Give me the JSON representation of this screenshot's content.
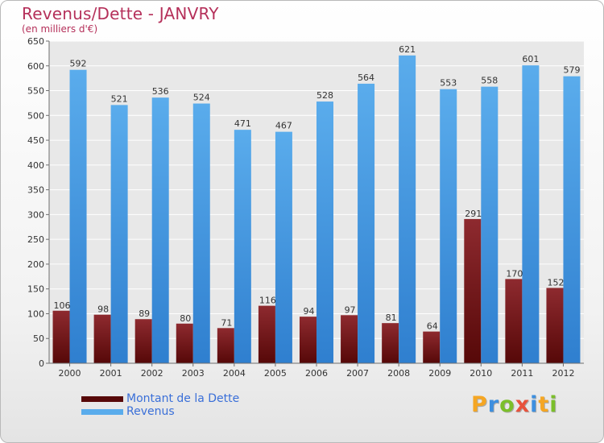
{
  "title": "Revenus/Dette - JANVRY",
  "subtitle": "(en milliers d'€)",
  "legend": {
    "placement": "bottom-left",
    "debt_label": "Montant de la Dette",
    "revenue_label": "Revenus"
  },
  "logo": {
    "text": "Proxiti",
    "letters": [
      "P",
      "r",
      "o",
      "x",
      "i",
      "t",
      "i"
    ],
    "letter_colors": [
      "#f5a623",
      "#3d8fdf",
      "#7bbf2a",
      "#e8523c",
      "#3d8fdf",
      "#f5a623",
      "#7bbf2a"
    ]
  },
  "colors": {
    "debt_top": "#8e2a2f",
    "debt_bottom": "#560808",
    "revenue_top": "#5aacec",
    "revenue_bottom": "#2f7fcf",
    "grid": "#ffffff",
    "axis": "#6e6e6e"
  },
  "chart_data": {
    "type": "bar",
    "categories": [
      "2000",
      "2001",
      "2002",
      "2003",
      "2004",
      "2005",
      "2006",
      "2007",
      "2008",
      "2009",
      "2010",
      "2011",
      "2012"
    ],
    "series": [
      {
        "name": "Montant de la Dette",
        "values": [
          106,
          98,
          89,
          80,
          71,
          116,
          94,
          97,
          81,
          64,
          291,
          170,
          152
        ]
      },
      {
        "name": "Revenus",
        "values": [
          592,
          521,
          536,
          524,
          471,
          467,
          528,
          564,
          621,
          553,
          558,
          601,
          579
        ]
      }
    ],
    "yticks": [
      0,
      50,
      100,
      150,
      200,
      250,
      300,
      350,
      400,
      450,
      500,
      550,
      600,
      650
    ],
    "ylim": [
      0,
      650
    ],
    "grid": true,
    "data_labels": true
  }
}
